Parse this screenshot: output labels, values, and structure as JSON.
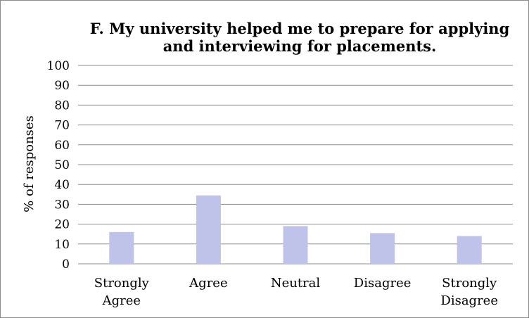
{
  "chart_data": {
    "type": "bar",
    "title_lines": [
      "F. My university helped me to prepare for applying",
      "and interviewing for placements."
    ],
    "categories": [
      [
        "Strongly",
        "Agree"
      ],
      [
        "Agree"
      ],
      [
        "Neutral"
      ],
      [
        "Disagree"
      ],
      [
        "Strongly",
        "Disagree"
      ]
    ],
    "values": [
      16,
      34.5,
      19,
      15.5,
      14
    ],
    "ylabel": "% of responses",
    "xlabel": "",
    "ylim": [
      0,
      100
    ],
    "ytick_step": 10,
    "grid": true,
    "legend": "none",
    "bar_color": "#c0c3e9",
    "grid_color": "#8c8c8c"
  }
}
